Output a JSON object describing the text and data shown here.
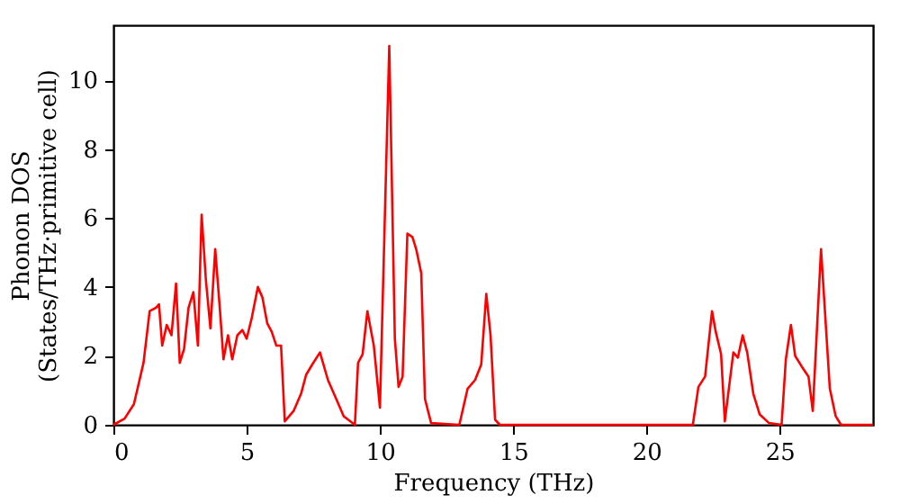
{
  "chart_data": {
    "type": "line",
    "xlabel": "Frequency (THz)",
    "ylabel": "Phonon DOS\n(States/THz·primitive cell)",
    "xlim": [
      0,
      28.5
    ],
    "ylim": [
      0,
      11.6
    ],
    "xticks": [
      0,
      5,
      10,
      15,
      20,
      25
    ],
    "yticks": [
      0,
      2,
      4,
      6,
      8,
      10
    ],
    "grid": false,
    "line_style": "solid",
    "marker": "none",
    "series": [
      {
        "color": "#ff0000",
        "x": [
          0,
          0.42,
          0.77,
          1.13,
          1.36,
          1.6,
          1.71,
          1.83,
          2.0,
          2.18,
          2.35,
          2.49,
          2.65,
          2.82,
          3.0,
          3.17,
          3.31,
          3.47,
          3.64,
          3.82,
          4.0,
          4.13,
          4.3,
          4.46,
          4.65,
          4.84,
          5.0,
          5.19,
          5.42,
          5.59,
          5.77,
          5.94,
          6.11,
          6.29,
          6.43,
          6.76,
          7.04,
          7.23,
          7.46,
          7.75,
          8.05,
          8.36,
          8.64,
          9.06,
          9.18,
          9.35,
          9.53,
          9.77,
          10.0,
          10.35,
          10.56,
          10.7,
          10.85,
          11.03,
          11.22,
          11.36,
          11.55,
          11.69,
          11.92,
          12.98,
          13.29,
          13.57,
          13.8,
          13.99,
          14.15,
          14.32,
          14.5,
          21.74,
          21.95,
          22.2,
          22.46,
          22.6,
          22.8,
          22.94,
          23.26,
          23.43,
          23.61,
          23.78,
          24.01,
          24.25,
          24.6,
          25.07,
          25.23,
          25.42,
          25.58,
          25.82,
          26.08,
          26.24,
          26.55,
          26.88,
          27.1,
          27.3,
          28.5
        ],
        "values": [
          0,
          0.18,
          0.6,
          1.8,
          3.3,
          3.4,
          3.5,
          2.3,
          2.9,
          2.6,
          4.1,
          1.8,
          2.2,
          3.4,
          3.85,
          2.3,
          6.1,
          4.2,
          2.8,
          5.1,
          3.3,
          1.9,
          2.6,
          1.9,
          2.6,
          2.75,
          2.5,
          3.1,
          4.0,
          3.7,
          2.95,
          2.7,
          2.3,
          2.3,
          0.1,
          0.4,
          0.9,
          1.45,
          1.75,
          2.1,
          1.3,
          0.75,
          0.25,
          0,
          1.8,
          2.05,
          3.3,
          2.3,
          0.5,
          11.0,
          2.5,
          1.1,
          1.4,
          5.55,
          5.45,
          5.1,
          4.4,
          0.75,
          0.05,
          0,
          1.05,
          1.3,
          1.75,
          3.8,
          2.6,
          0.15,
          0,
          0,
          1.1,
          1.4,
          3.3,
          2.7,
          2.05,
          0.1,
          2.1,
          1.95,
          2.6,
          2.1,
          0.9,
          0.3,
          0.05,
          0,
          1.9,
          2.9,
          2.0,
          1.7,
          1.4,
          0.4,
          5.1,
          1.05,
          0.25,
          0,
          0
        ]
      }
    ]
  }
}
